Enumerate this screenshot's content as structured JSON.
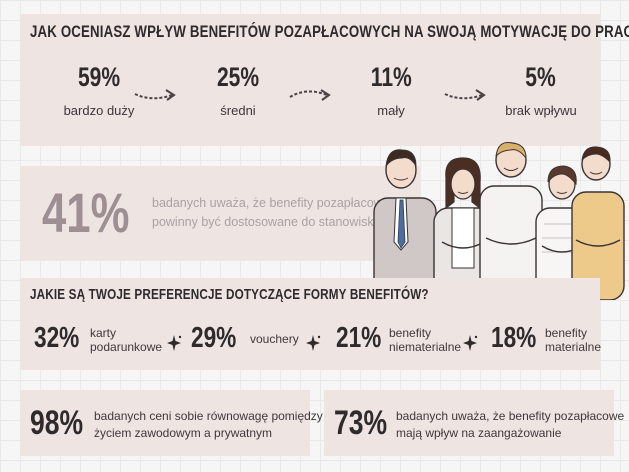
{
  "top": {
    "title": "JAK OCENIASZ WPŁYW BENEFITÓW POZAPŁACOWYCH NA SWOJĄ MOTYWACJĘ DO PRACY?",
    "items": [
      {
        "value": "59%",
        "label": "bardzo duży"
      },
      {
        "value": "25%",
        "label": "średni"
      },
      {
        "value": "11%",
        "label": "mały"
      },
      {
        "value": "5%",
        "label": "brak wpływu"
      }
    ]
  },
  "mid": {
    "value": "41%",
    "line1": "badanych uważa, że benefity pozapłacowe",
    "line2": "powinny być dostosowane do stanowiska"
  },
  "prefs": {
    "title": "JAKIE SĄ TWOJE PREFERENCJE DOTYCZĄCE FORMY BENEFITÓW?",
    "items": [
      {
        "value": "32%",
        "line1": "karty",
        "line2": "podarunkowe"
      },
      {
        "value": "29%",
        "line1": "vouchery",
        "line2": ""
      },
      {
        "value": "21%",
        "line1": "benefity",
        "line2": "niematerialne"
      },
      {
        "value": "18%",
        "line1": "benefity",
        "line2": "materialne"
      }
    ]
  },
  "bottom": [
    {
      "value": "98%",
      "line1": "badanych ceni sobie równowagę pomiędzy",
      "line2": "życiem zawodowym a prywatnym"
    },
    {
      "value": "73%",
      "line1": "badanych uważa, że benefity pozapłacowe",
      "line2": "mają wpływ na zaangażowanie"
    }
  ],
  "colors": {
    "panel": "#eee4e1",
    "dark": "#2f2a2c",
    "faded_number": "#9d8f93",
    "faded_text": "#a9a2a3"
  },
  "icons": [
    "curved-arrow-icon",
    "sparkle-icon",
    "business-team-illustration"
  ]
}
